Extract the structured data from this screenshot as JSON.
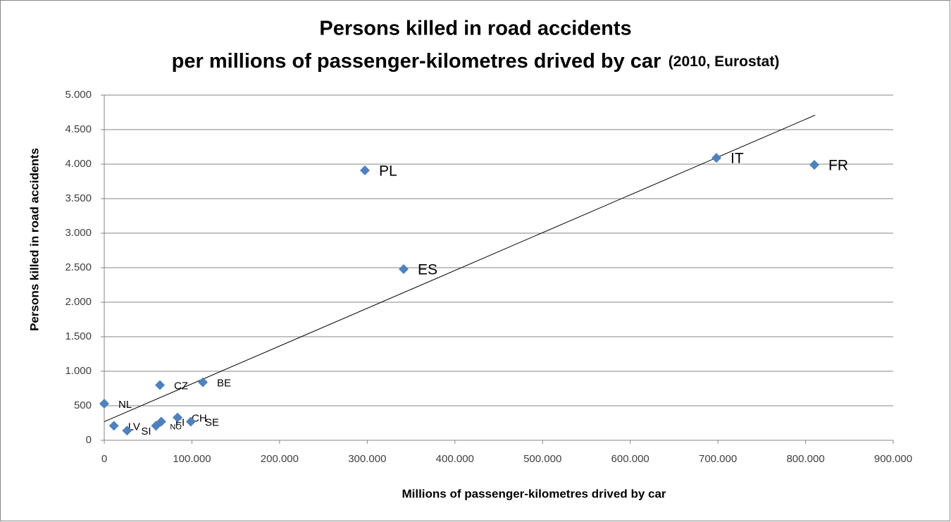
{
  "chart_data": {
    "type": "scatter",
    "title": [
      "Persons killed in road accidents",
      "per millions of passenger-kilometres drived by car"
    ],
    "subtitle": "(2010, Eurostat)",
    "x_label": "Millions of passenger-kilometres drived by car",
    "y_label": "Persons killed in road accidents",
    "xlim": [
      0,
      900000
    ],
    "ylim": [
      0,
      5000
    ],
    "xticks": [
      0,
      {
        "value": 100000,
        "label": "100.000"
      },
      {
        "value": 200000,
        "label": "200.000"
      },
      {
        "value": 300000,
        "label": "300.000"
      },
      {
        "value": 400000,
        "label": "400.000"
      },
      {
        "value": 500000,
        "label": "500.000"
      },
      {
        "value": 600000,
        "label": "600.000"
      },
      {
        "value": 700000,
        "label": "700.000"
      },
      {
        "value": 800000,
        "label": "800.000"
      },
      {
        "value": 900000,
        "label": "900.000"
      }
    ],
    "yticks": [
      0,
      500,
      {
        "value": 1000,
        "label": "1.000"
      },
      {
        "value": 1500,
        "label": "1.500"
      },
      {
        "value": 2000,
        "label": "2.000"
      },
      {
        "value": 2500,
        "label": "2.500"
      },
      {
        "value": 3000,
        "label": "3.000"
      },
      {
        "value": 3500,
        "label": "3.500"
      },
      {
        "value": 4000,
        "label": "4.000"
      },
      {
        "value": 4500,
        "label": "4.500"
      },
      {
        "value": 5000,
        "label": "5.000"
      }
    ],
    "grid": true,
    "series": [
      {
        "color": "#4f81bd",
        "labels": [
          "NL",
          "LV",
          "SI",
          "NO",
          "FI",
          "CZ",
          "CH",
          "SE",
          "BE",
          "PL",
          "ES",
          "IT",
          "FR"
        ],
        "x": [
          0,
          11000,
          26000,
          59000,
          65000,
          63500,
          83600,
          98800,
          112500,
          297300,
          341500,
          698300,
          810000
        ],
        "values": [
          530,
          210,
          140,
          210,
          270,
          800,
          330,
          270,
          840,
          3910,
          2480,
          4090,
          3990
        ]
      }
    ],
    "trendline": {
      "color": "#000000",
      "x": [
        0,
        811000
      ],
      "values": [
        270,
        4710
      ]
    }
  }
}
